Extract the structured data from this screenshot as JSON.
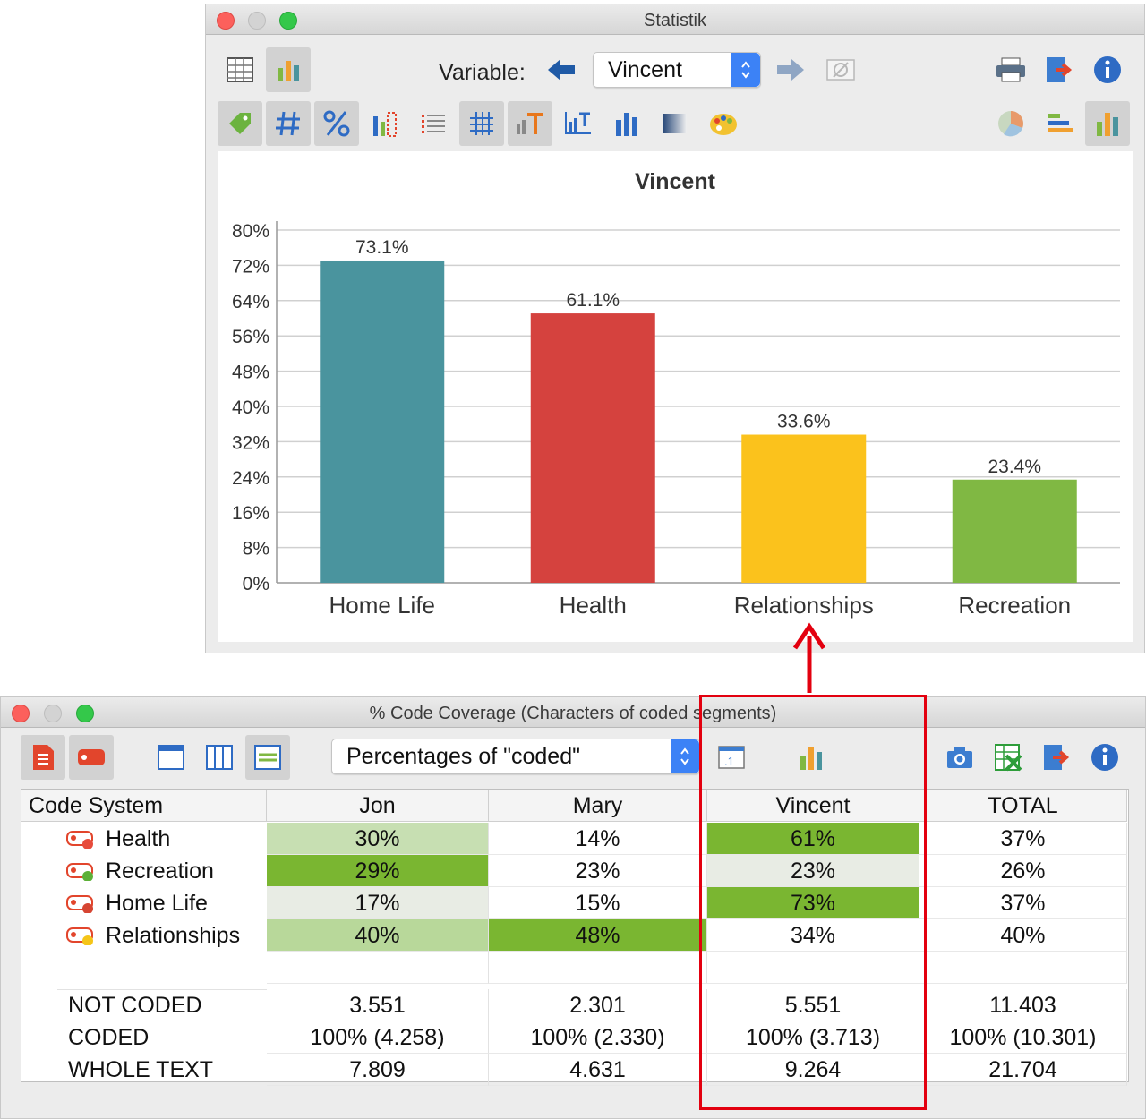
{
  "stat_window": {
    "title": "Statistik",
    "variable_label": "Variable:",
    "variable_value": "Vincent",
    "toolbar_icons": [
      "table-view-icon",
      "bar-chart-view-icon",
      "arrow-left-icon",
      "arrow-right-icon",
      "empty-set-icon",
      "printer-icon",
      "export-icon",
      "info-icon"
    ],
    "toolbar2_icons": [
      "tag-icon",
      "hash-icon",
      "percent-icon",
      "missing-values-icon",
      "list-icon",
      "grid-icon",
      "text-format-icon",
      "axis-labels-icon",
      "bar-settings-icon",
      "gradient-icon",
      "palette-icon",
      "pie-chart-icon",
      "horizontal-bar-icon",
      "vertical-bar-icon"
    ]
  },
  "chart_data": {
    "type": "bar",
    "title": "Vincent",
    "categories": [
      "Home Life",
      "Health",
      "Relationships",
      "Recreation"
    ],
    "values": [
      73.1,
      61.1,
      33.6,
      23.4
    ],
    "value_labels": [
      "73.1%",
      "61.1%",
      "33.6%",
      "23.4%"
    ],
    "colors": [
      "#4a949e",
      "#d5423e",
      "#fbc21c",
      "#80b843"
    ],
    "ylim": [
      0,
      80
    ],
    "yticks": [
      "80%",
      "72%",
      "64%",
      "56%",
      "48%",
      "40%",
      "32%",
      "24%",
      "16%",
      "8%",
      "0%"
    ],
    "grid": true
  },
  "cov_window": {
    "title": "% Code Coverage (Characters of coded segments)",
    "dropdown_value": "Percentages of \"coded\"",
    "columns": [
      "Code System",
      "Jon",
      "Mary",
      "Vincent",
      "TOTAL"
    ],
    "codes": [
      {
        "name": "Health",
        "dot": "#e74c3c",
        "values": [
          "30%",
          "14%",
          "61%",
          "37%"
        ],
        "shades": [
          "#c7dfb2",
          "",
          "#7ab631",
          ""
        ]
      },
      {
        "name": "Recreation",
        "dot": "#5cb037",
        "values": [
          "29%",
          "23%",
          "23%",
          "26%"
        ],
        "shades": [
          "#7ab631",
          "",
          "#e8ece4",
          ""
        ]
      },
      {
        "name": "Home Life",
        "dot": "#d64532",
        "values": [
          "17%",
          "15%",
          "73%",
          "37%"
        ],
        "shades": [
          "#e8ece4",
          "",
          "#7ab631",
          ""
        ]
      },
      {
        "name": "Relationships",
        "dot": "#f5c518",
        "values": [
          "40%",
          "48%",
          "34%",
          "40%"
        ],
        "shades": [
          "#b8d89a",
          "#7ab631",
          "",
          ""
        ]
      }
    ],
    "summary": [
      {
        "name": "NOT CODED",
        "values": [
          "3.551",
          "2.301",
          "5.551",
          "11.403"
        ]
      },
      {
        "name": "CODED",
        "values": [
          "100% (4.258)",
          "100% (2.330)",
          "100% (3.713)",
          "100% (10.301)"
        ]
      },
      {
        "name": "WHOLE TEXT",
        "values": [
          "7.809",
          "4.631",
          "9.264",
          "21.704"
        ]
      }
    ]
  },
  "accent_color": "#e3000f"
}
